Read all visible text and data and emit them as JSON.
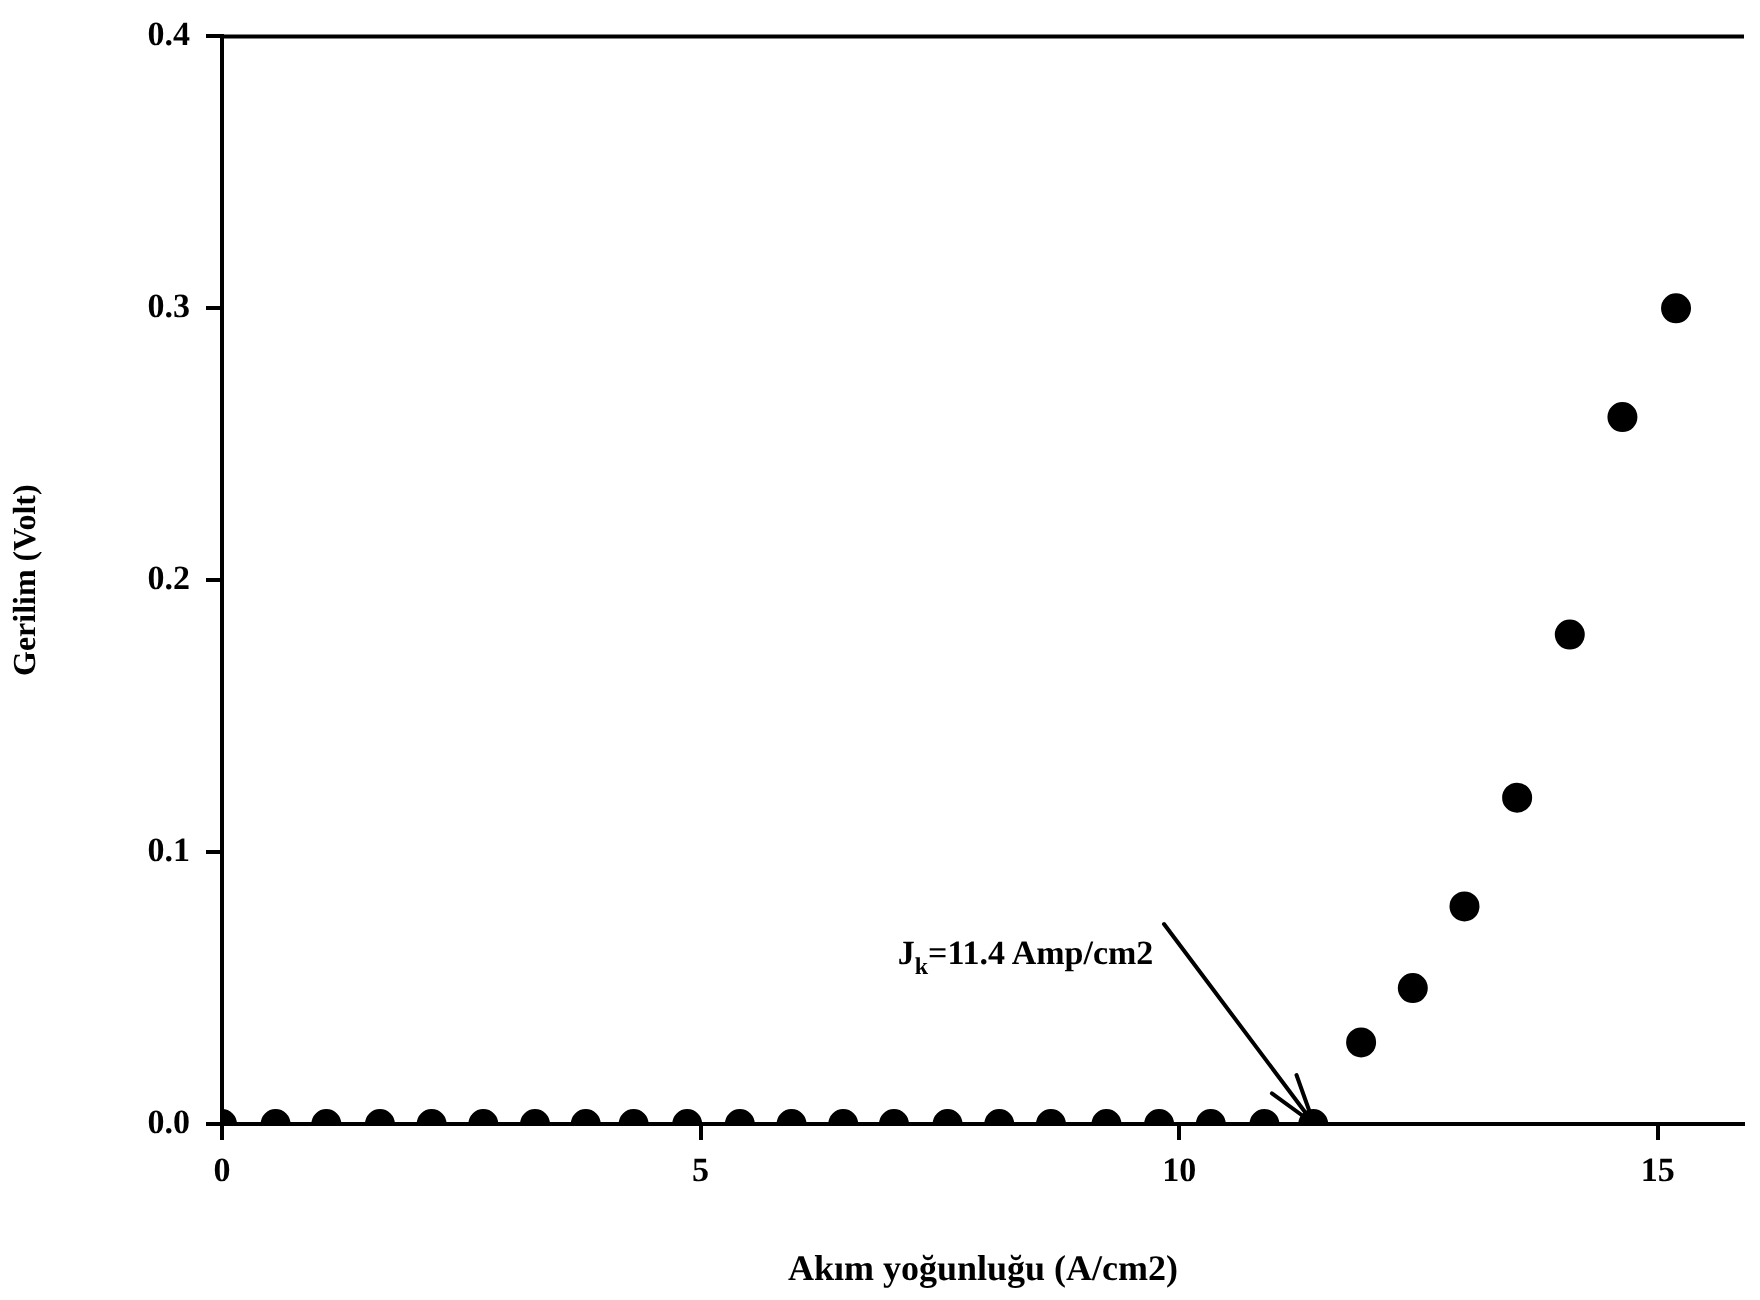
{
  "chart_data": {
    "type": "scatter",
    "xlabel": "Akım yoğunluğu (A/cm2)",
    "ylabel": "Gerilim (Volt)",
    "x": [
      0,
      0.56,
      1.09,
      1.65,
      2.19,
      2.73,
      3.27,
      3.8,
      4.3,
      4.86,
      5.41,
      5.95,
      6.49,
      7.02,
      7.58,
      8.12,
      8.66,
      9.24,
      9.79,
      10.33,
      10.89,
      11.4,
      11.9,
      12.44,
      12.98,
      13.53,
      14.08,
      14.63,
      15.19
    ],
    "series": [
      {
        "color": "#000000",
        "values": [
          0,
          0,
          0,
          0,
          0,
          0,
          0,
          0,
          0,
          0,
          0,
          0,
          0,
          0,
          0,
          0,
          0,
          0,
          0,
          0,
          0,
          0,
          0.03,
          0.05,
          0.08,
          0.12,
          0.18,
          0.26,
          0.3
        ]
      }
    ],
    "xlim": [
      0,
      15.9
    ],
    "xticks": [
      0,
      5,
      10,
      15
    ],
    "ylim": [
      0,
      0.4
    ],
    "yticks": [
      {
        "value": 0,
        "label": "0.0"
      },
      {
        "value": 0.1,
        "label": "0.1"
      },
      {
        "value": 0.2,
        "label": "0.2"
      },
      {
        "value": 0.3,
        "label": "0.3"
      },
      {
        "value": 0.4,
        "label": "0.4"
      }
    ],
    "marker": "circle",
    "grid": false,
    "legend": false,
    "annotations": [
      {
        "text": "J$_{k}$=11.4 Amp/cm2",
        "x": 11.4,
        "y": 0
      }
    ]
  }
}
